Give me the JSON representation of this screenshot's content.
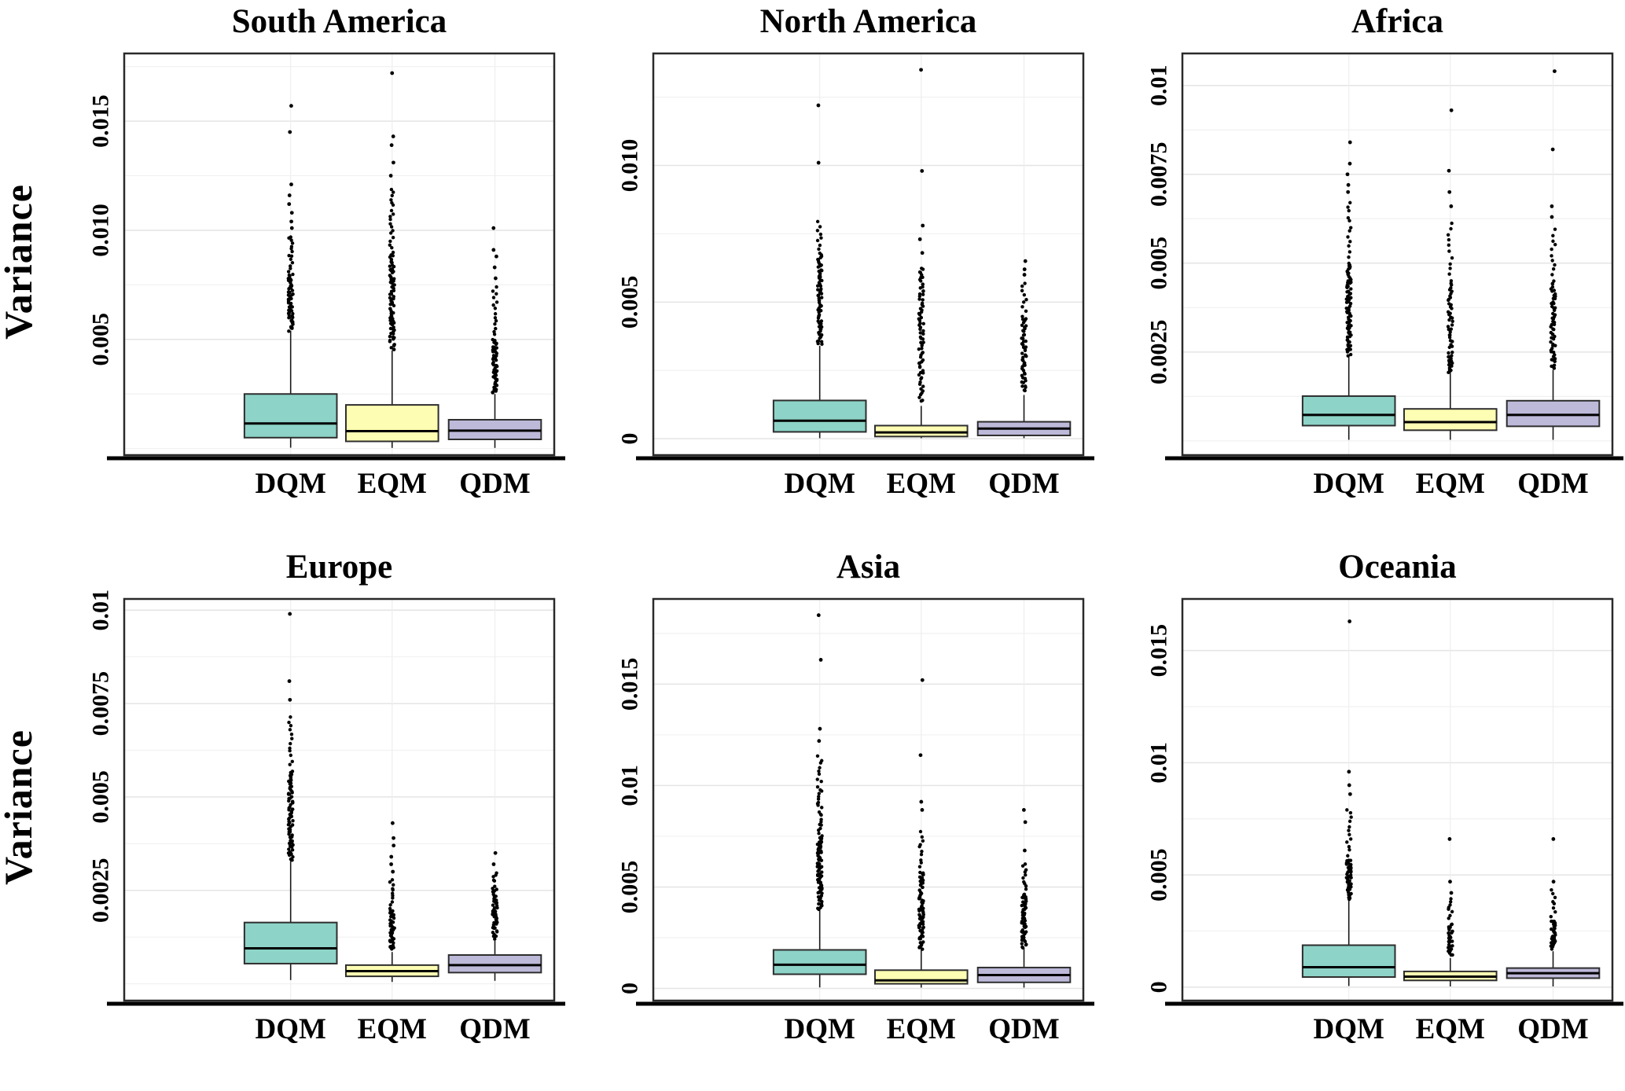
{
  "colors": {
    "boxes": {
      "DQM": "#8DD3C7",
      "EQM": "#FDFDB3",
      "QDM": "#BDB9D9"
    },
    "box_border": "#2e2e2e",
    "median": "#000000",
    "whisker": "#1a1a1a",
    "outlier": "#000000",
    "grid_major": "#e4e4e4",
    "grid_minor": "#f1f1f1",
    "grid_vertical": "#eeeeee",
    "panel_border": "#2a2a2a",
    "axis_line": "#000000"
  },
  "chart_data": {
    "type": "boxplot",
    "ylabel": "Variance",
    "x_categories": [
      "DQM",
      "EQM",
      "QDM"
    ],
    "category_pos": [
      0.387,
      0.623,
      0.862
    ],
    "box_width_frac": 0.215,
    "grid": true,
    "panels": [
      {
        "title": "South America",
        "ylim": [
          -0.0003,
          0.0181
        ],
        "yticks": [
          {
            "v": 0.005,
            "label": "0.005"
          },
          {
            "v": 0.01,
            "label": "0.010"
          },
          {
            "v": 0.015,
            "label": "0.015"
          }
        ],
        "minor_gridlines": [
          0,
          0.0025,
          0.0075,
          0.0125,
          0.0175
        ],
        "boxes": [
          {
            "category": "DQM",
            "whisker_low": 4e-05,
            "q1": 0.0005,
            "median": 0.00115,
            "q3": 0.0025,
            "whisker_high": 0.0054,
            "outlier_clusters": [
              {
                "min": 0.0054,
                "max": 0.008,
                "n": 55
              },
              {
                "min": 0.0081,
                "max": 0.0098,
                "n": 14
              }
            ],
            "outliers": [
              0.0101,
              0.0104,
              0.0108,
              0.0112,
              0.0116,
              0.0121,
              0.0145,
              0.0157
            ]
          },
          {
            "category": "EQM",
            "whisker_low": 3e-05,
            "q1": 0.00033,
            "median": 0.0008,
            "q3": 0.002,
            "whisker_high": 0.0045,
            "outlier_clusters": [
              {
                "min": 0.0045,
                "max": 0.009,
                "n": 80
              },
              {
                "min": 0.0091,
                "max": 0.012,
                "n": 18
              }
            ],
            "outliers": [
              0.0125,
              0.0131,
              0.0139,
              0.0143,
              0.0172
            ]
          },
          {
            "category": "QDM",
            "whisker_low": 3e-05,
            "q1": 0.00042,
            "median": 0.00082,
            "q3": 0.00132,
            "whisker_high": 0.0025,
            "outlier_clusters": [
              {
                "min": 0.0025,
                "max": 0.005,
                "n": 55
              },
              {
                "min": 0.0051,
                "max": 0.0075,
                "n": 14
              }
            ],
            "outliers": [
              0.0078,
              0.0083,
              0.0088,
              0.0091,
              0.0101
            ]
          }
        ]
      },
      {
        "title": "North America",
        "ylim": [
          -0.0006,
          0.0141
        ],
        "yticks": [
          {
            "v": 0,
            "label": "0"
          },
          {
            "v": 0.005,
            "label": "0.005"
          },
          {
            "v": 0.01,
            "label": "0.010"
          }
        ],
        "minor_gridlines": [
          0.0025,
          0.0075,
          0.0125
        ],
        "boxes": [
          {
            "category": "DQM",
            "whisker_low": 2e-05,
            "q1": 0.00025,
            "median": 0.00066,
            "q3": 0.0014,
            "whisker_high": 0.0034,
            "outlier_clusters": [
              {
                "min": 0.0034,
                "max": 0.0068,
                "n": 70
              },
              {
                "min": 0.0069,
                "max": 0.008,
                "n": 8
              }
            ],
            "outliers": [
              0.0101,
              0.0122
            ]
          },
          {
            "category": "EQM",
            "whisker_low": 2e-05,
            "q1": 8e-05,
            "median": 0.00023,
            "q3": 0.00048,
            "whisker_high": 0.0012,
            "outlier_clusters": [
              {
                "min": 0.0013,
                "max": 0.0023,
                "n": 12
              },
              {
                "min": 0.0023,
                "max": 0.0063,
                "n": 62
              }
            ],
            "outliers": [
              0.0068,
              0.0073,
              0.0078,
              0.0098,
              0.0135
            ]
          },
          {
            "category": "QDM",
            "whisker_low": 2e-05,
            "q1": 0.00012,
            "median": 0.00037,
            "q3": 0.00062,
            "whisker_high": 0.0016,
            "outlier_clusters": [
              {
                "min": 0.0017,
                "max": 0.0045,
                "n": 48
              },
              {
                "min": 0.0046,
                "max": 0.0058,
                "n": 8
              }
            ],
            "outliers": [
              0.006,
              0.0062,
              0.0065
            ]
          }
        ]
      },
      {
        "title": "Africa",
        "ylim": [
          -0.0004,
          0.0109
        ],
        "yticks": [
          {
            "v": 0.0025,
            "label": "0.0025"
          },
          {
            "v": 0.005,
            "label": "0.005"
          },
          {
            "v": 0.0075,
            "label": "0.0075"
          },
          {
            "v": 0.01,
            "label": "0.01"
          }
        ],
        "minor_gridlines": [
          0,
          0.00125,
          0.00375,
          0.00625,
          0.00875
        ],
        "boxes": [
          {
            "category": "DQM",
            "whisker_low": 3e-05,
            "q1": 0.00043,
            "median": 0.00073,
            "q3": 0.00126,
            "whisker_high": 0.0024,
            "outlier_clusters": [
              {
                "min": 0.0024,
                "max": 0.005,
                "n": 75
              },
              {
                "min": 0.0051,
                "max": 0.0068,
                "n": 12
              }
            ],
            "outliers": [
              0.007,
              0.0072,
              0.0075,
              0.0078,
              0.0084
            ]
          },
          {
            "category": "EQM",
            "whisker_low": 3e-05,
            "q1": 0.0003,
            "median": 0.00053,
            "q3": 0.0009,
            "whisker_high": 0.0019,
            "outlier_clusters": [
              {
                "min": 0.0019,
                "max": 0.0025,
                "n": 18
              },
              {
                "min": 0.0026,
                "max": 0.0045,
                "n": 35
              },
              {
                "min": 0.0046,
                "max": 0.0062,
                "n": 10
              }
            ],
            "outliers": [
              0.0066,
              0.007,
              0.0076,
              0.0093
            ]
          },
          {
            "category": "QDM",
            "whisker_low": 3e-05,
            "q1": 0.00041,
            "median": 0.00073,
            "q3": 0.00113,
            "whisker_high": 0.002,
            "outlier_clusters": [
              {
                "min": 0.002,
                "max": 0.0045,
                "n": 55
              },
              {
                "min": 0.0046,
                "max": 0.006,
                "n": 10
              }
            ],
            "outliers": [
              0.0063,
              0.0066,
              0.0082,
              0.0104
            ]
          }
        ]
      },
      {
        "title": "Europe",
        "ylim": [
          -0.00045,
          0.0103
        ],
        "yticks": [
          {
            "v": 0.0025,
            "label": "0.0025"
          },
          {
            "v": 0.005,
            "label": "0.005"
          },
          {
            "v": 0.0075,
            "label": "0.0075"
          },
          {
            "v": 0.01,
            "label": "0.01"
          }
        ],
        "minor_gridlines": [
          0,
          0.00125,
          0.00375,
          0.00625,
          0.00875
        ],
        "boxes": [
          {
            "category": "DQM",
            "whisker_low": 0.0001,
            "q1": 0.00054,
            "median": 0.00095,
            "q3": 0.00164,
            "whisker_high": 0.0033,
            "outlier_clusters": [
              {
                "min": 0.0033,
                "max": 0.0057,
                "n": 75
              },
              {
                "min": 0.0058,
                "max": 0.0072,
                "n": 12
              }
            ],
            "outliers": [
              0.0076,
              0.0081,
              0.0099
            ]
          },
          {
            "category": "EQM",
            "whisker_low": 5e-05,
            "q1": 0.0002,
            "median": 0.00034,
            "q3": 0.0005,
            "whisker_high": 0.00085,
            "outlier_clusters": [
              {
                "min": 0.0009,
                "max": 0.002,
                "n": 40
              },
              {
                "min": 0.0021,
                "max": 0.0028,
                "n": 10
              }
            ],
            "outliers": [
              0.003,
              0.0032,
              0.0034,
              0.0037,
              0.0039,
              0.0043
            ]
          },
          {
            "category": "QDM",
            "whisker_low": 8e-05,
            "q1": 0.0003,
            "median": 0.0005,
            "q3": 0.00077,
            "whisker_high": 0.00115,
            "outlier_clusters": [
              {
                "min": 0.0012,
                "max": 0.0026,
                "n": 45
              },
              {
                "min": 0.0027,
                "max": 0.003,
                "n": 5
              }
            ],
            "outliers": [
              0.0032,
              0.0035
            ]
          }
        ]
      },
      {
        "title": "Asia",
        "ylim": [
          -0.0006,
          0.0192
        ],
        "yticks": [
          {
            "v": 0,
            "label": "0"
          },
          {
            "v": 0.005,
            "label": "0.005"
          },
          {
            "v": 0.01,
            "label": "0.01"
          },
          {
            "v": 0.015,
            "label": "0.015"
          }
        ],
        "minor_gridlines": [
          0.0025,
          0.0075,
          0.0125,
          0.0175
        ],
        "boxes": [
          {
            "category": "DQM",
            "whisker_low": 5e-05,
            "q1": 0.0007,
            "median": 0.00117,
            "q3": 0.0019,
            "whisker_high": 0.0039,
            "outlier_clusters": [
              {
                "min": 0.0039,
                "max": 0.0075,
                "n": 80
              },
              {
                "min": 0.0076,
                "max": 0.01,
                "n": 20
              },
              {
                "min": 0.0101,
                "max": 0.0115,
                "n": 8
              }
            ],
            "outliers": [
              0.0122,
              0.0128,
              0.0162,
              0.0184
            ]
          },
          {
            "category": "EQM",
            "whisker_low": 4e-05,
            "q1": 0.00023,
            "median": 0.0004,
            "q3": 0.0009,
            "whisker_high": 0.0019,
            "outlier_clusters": [
              {
                "min": 0.0019,
                "max": 0.0058,
                "n": 75
              },
              {
                "min": 0.0059,
                "max": 0.0078,
                "n": 10
              }
            ],
            "outliers": [
              0.0088,
              0.0092,
              0.0115,
              0.0152
            ]
          },
          {
            "category": "QDM",
            "whisker_low": 4e-05,
            "q1": 0.0003,
            "median": 0.00066,
            "q3": 0.00103,
            "whisker_high": 0.002,
            "outlier_clusters": [
              {
                "min": 0.002,
                "max": 0.0047,
                "n": 55
              },
              {
                "min": 0.0048,
                "max": 0.0062,
                "n": 10
              }
            ],
            "outliers": [
              0.0068,
              0.0082,
              0.0088
            ]
          }
        ]
      },
      {
        "title": "Oceania",
        "ylim": [
          -0.0006,
          0.0173
        ],
        "yticks": [
          {
            "v": 0,
            "label": "0"
          },
          {
            "v": 0.005,
            "label": "0.005"
          },
          {
            "v": 0.01,
            "label": "0.01"
          },
          {
            "v": 0.015,
            "label": "0.015"
          }
        ],
        "minor_gridlines": [
          0.0025,
          0.0075,
          0.0125
        ],
        "boxes": [
          {
            "category": "DQM",
            "whisker_low": 5e-05,
            "q1": 0.00045,
            "median": 0.00089,
            "q3": 0.00187,
            "whisker_high": 0.0039,
            "outlier_clusters": [
              {
                "min": 0.0039,
                "max": 0.0057,
                "n": 45
              },
              {
                "min": 0.0058,
                "max": 0.008,
                "n": 12
              }
            ],
            "outliers": [
              0.0086,
              0.009,
              0.0096,
              0.0163
            ]
          },
          {
            "category": "EQM",
            "whisker_low": 3e-05,
            "q1": 0.0003,
            "median": 0.00047,
            "q3": 0.0007,
            "whisker_high": 0.0013,
            "outlier_clusters": [
              {
                "min": 0.0014,
                "max": 0.0028,
                "n": 30
              },
              {
                "min": 0.003,
                "max": 0.004,
                "n": 8
              }
            ],
            "outliers": [
              0.0042,
              0.0047,
              0.0066
            ]
          },
          {
            "category": "QDM",
            "whisker_low": 3e-05,
            "q1": 0.0004,
            "median": 0.00062,
            "q3": 0.00085,
            "whisker_high": 0.0016,
            "outlier_clusters": [
              {
                "min": 0.0017,
                "max": 0.003,
                "n": 35
              },
              {
                "min": 0.0031,
                "max": 0.0044,
                "n": 8
              }
            ],
            "outliers": [
              0.0047,
              0.0066
            ]
          }
        ]
      }
    ]
  }
}
